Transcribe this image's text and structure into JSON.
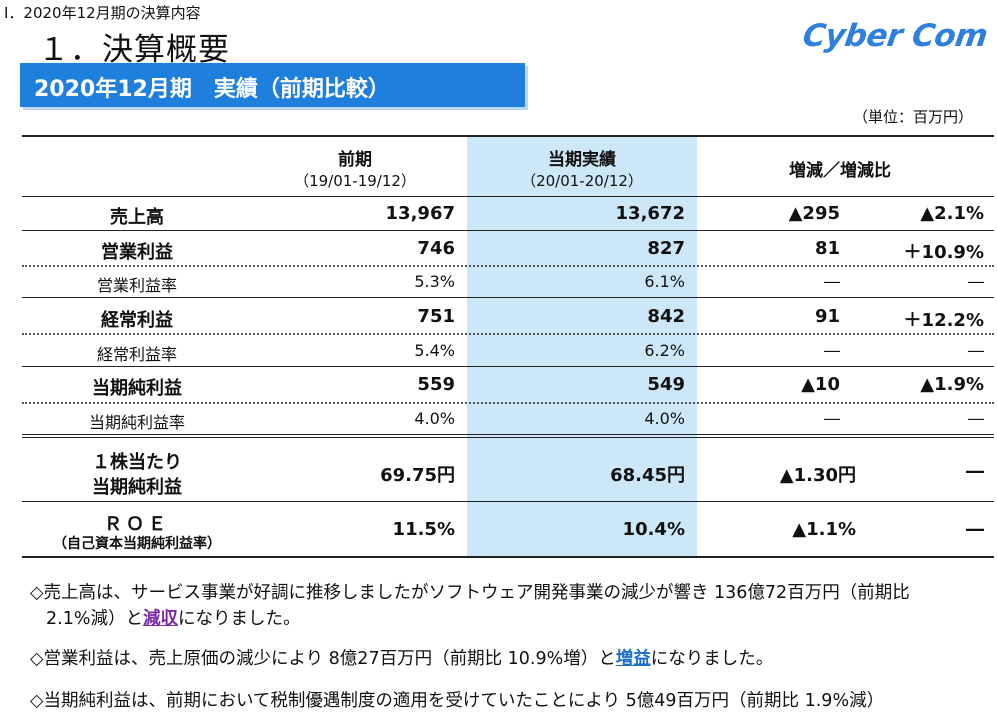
{
  "header": {
    "section": "Ⅰ．2020年12月期の決算内容",
    "title": "１．決算概要",
    "logo": "Cyber Com",
    "banner": "2020年12月期　実績（前期比較）",
    "unit": "（単位：百万円）"
  },
  "table": {
    "columns": {
      "prev_label": "前期",
      "prev_period": "（19/01-19/12）",
      "curr_label": "当期実績",
      "curr_period": "（20/01-20/12）",
      "diff_label": "増減／増減比"
    },
    "rows": [
      {
        "label": "売上高",
        "prev": "13,967",
        "curr": "13,672",
        "diff": "▲295",
        "ratio": "▲2.1%"
      },
      {
        "label": "営業利益",
        "prev": "746",
        "curr": "827",
        "diff": "81",
        "ratio": "＋10.9%"
      },
      {
        "label": "営業利益率",
        "prev": "5.3%",
        "curr": "6.1%",
        "diff": "―",
        "ratio": "―"
      },
      {
        "label": "経常利益",
        "prev": "751",
        "curr": "842",
        "diff": "91",
        "ratio": "＋12.2%"
      },
      {
        "label": "経常利益率",
        "prev": "5.4%",
        "curr": "6.2%",
        "diff": "―",
        "ratio": "―"
      },
      {
        "label": "当期純利益",
        "prev": "559",
        "curr": "549",
        "diff": "▲10",
        "ratio": "▲1.9%"
      },
      {
        "label": "当期純利益率",
        "prev": "4.0%",
        "curr": "4.0%",
        "diff": "―",
        "ratio": "―"
      }
    ],
    "eps": {
      "label1": "１株当たり",
      "label2": "当期純利益",
      "prev": "69.75円",
      "curr": "68.45円",
      "diff": "▲1.30円",
      "ratio": "―"
    },
    "roe": {
      "label1": "ＲＯＥ",
      "label2": "（自己資本当期純利益率）",
      "prev": "11.5%",
      "curr": "10.4%",
      "diff": "▲1.1%",
      "ratio": "―"
    }
  },
  "notes": {
    "n1_pre": "◇売上高は、サービス事業が好調に推移しましたがソフトウェア開発事業の減少が響き 136億72百万円（前期比",
    "n1_line2_pre": "2.1%減）と",
    "n1_kw": "減収",
    "n1_post": "になりました。",
    "n2_pre": "◇営業利益は、売上原価の減少により 8億27百万円（前期比 10.9%増）と",
    "n2_kw": "増益",
    "n2_post": "になりました。",
    "n3": "◇当期純利益は、前期において税制優遇制度の適用を受けていたことにより 5億49百万円（前期比 1.9%減）"
  }
}
